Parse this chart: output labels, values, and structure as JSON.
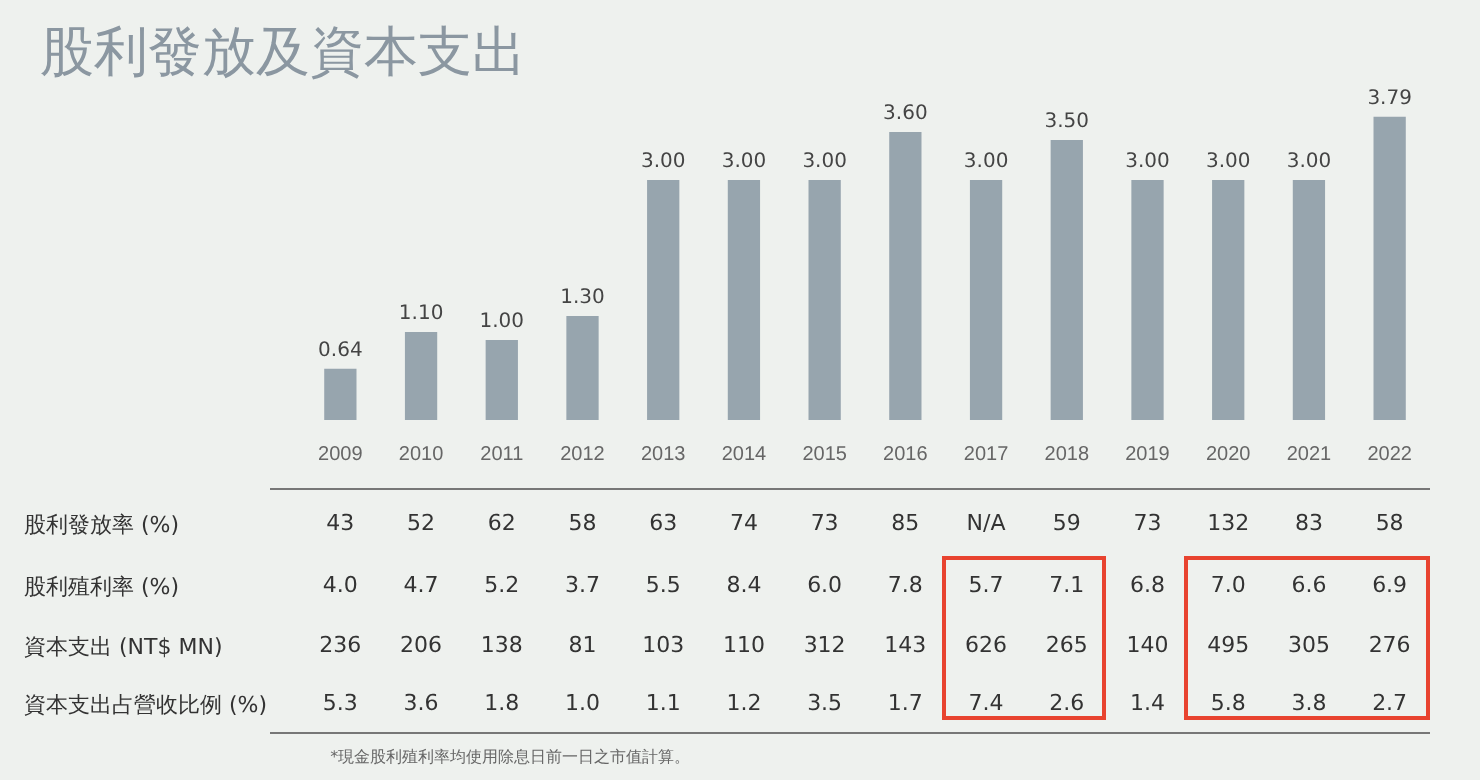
{
  "chart_data": {
    "type": "bar",
    "title": "股利發放及資本支出",
    "categories": [
      "2009",
      "2010",
      "2011",
      "2012",
      "2013",
      "2014",
      "2015",
      "2016",
      "2017",
      "2018",
      "2019",
      "2020",
      "2021",
      "2022"
    ],
    "values": [
      0.64,
      1.1,
      1.0,
      1.3,
      3.0,
      3.0,
      3.0,
      3.6,
      3.0,
      3.5,
      3.0,
      3.0,
      3.0,
      3.79
    ],
    "value_labels": [
      "0.64",
      "1.10",
      "1.00",
      "1.30",
      "3.00",
      "3.00",
      "3.00",
      "3.60",
      "3.00",
      "3.50",
      "3.00",
      "3.00",
      "3.00",
      "3.79"
    ],
    "color": "#97a5ae",
    "grid": false,
    "legend": false,
    "tick_labels": "x",
    "annotations": [
      "股利發放率 (%)",
      "43",
      "52",
      "62",
      "58",
      "63",
      "74",
      "73",
      "85",
      "N/A",
      "59",
      "73",
      "132",
      "83",
      "58",
      "股利殖利率 (%)",
      "4.0",
      "4.7",
      "5.2",
      "3.7",
      "5.5",
      "8.4",
      "6.0",
      "7.8",
      "5.7",
      "7.1",
      "6.8",
      "7.0",
      "6.6",
      "6.9",
      "資本支出 (NT$ MN)",
      "236",
      "206",
      "138",
      "81",
      "103",
      "110",
      "312",
      "143",
      "626",
      "265",
      "140",
      "495",
      "305",
      "276",
      "資本支出占營收比例 (%)",
      "5.3",
      "3.6",
      "1.8",
      "1.0",
      "1.1",
      "1.2",
      "3.5",
      "1.7",
      "7.4",
      "2.6",
      "1.4",
      "5.8",
      "3.8",
      "2.7",
      "*現金股利殖利率均使用除息日前一日之市值計算。"
    ]
  }
}
